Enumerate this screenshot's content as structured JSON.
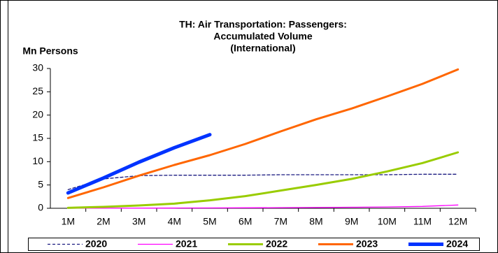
{
  "chart_data": {
    "type": "line",
    "title": [
      "TH: Air Transportation: Passengers:",
      "Accumulated Volume",
      "(International)"
    ],
    "y_label": "Mn Persons",
    "categories": [
      "1M",
      "2M",
      "3M",
      "4M",
      "5M",
      "6M",
      "7M",
      "8M",
      "9M",
      "10M",
      "11M",
      "12M"
    ],
    "series": [
      {
        "name": "2020",
        "color": "#1a1a80",
        "line_width": 1.3,
        "dash": true,
        "values": [
          4.0,
          6.3,
          7.0,
          7.1,
          7.1,
          7.1,
          7.2,
          7.2,
          7.2,
          7.2,
          7.3,
          7.3
        ]
      },
      {
        "name": "2021",
        "color": "#ff00ff",
        "line_width": 1.3,
        "dash": false,
        "values": [
          0.01,
          0.02,
          0.03,
          0.05,
          0.07,
          0.1,
          0.13,
          0.17,
          0.22,
          0.28,
          0.4,
          0.7
        ]
      },
      {
        "name": "2022",
        "color": "#99cc00",
        "line_width": 3,
        "dash": false,
        "values": [
          0.1,
          0.3,
          0.6,
          1.0,
          1.7,
          2.6,
          3.8,
          5.0,
          6.3,
          7.9,
          9.7,
          12.0
        ]
      },
      {
        "name": "2023",
        "color": "#ff6600",
        "line_width": 3,
        "dash": false,
        "values": [
          2.2,
          4.5,
          7.0,
          9.3,
          11.4,
          13.8,
          16.5,
          19.1,
          21.4,
          24.0,
          26.7,
          29.8
        ]
      },
      {
        "name": "2024",
        "color": "#0033ff",
        "line_width": 5,
        "dash": false,
        "values": [
          3.3,
          6.5,
          9.9,
          13.0,
          15.8,
          null,
          null,
          null,
          null,
          null,
          null,
          null
        ]
      }
    ],
    "ylim": [
      0,
      30
    ],
    "yticks": [
      0,
      5,
      10,
      15,
      20,
      25,
      30
    ],
    "grid": false,
    "legend": "bottom"
  }
}
